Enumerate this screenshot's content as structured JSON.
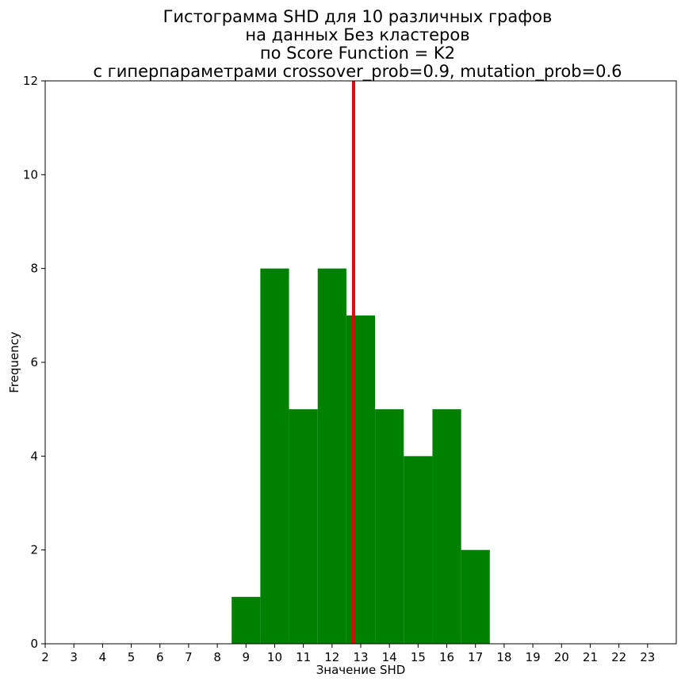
{
  "chart_data": {
    "type": "bar",
    "title_lines": [
      "Гистограмма SHD для 10 различных графов",
      "на данных Без кластеров",
      "по Score Function = K2",
      "с гиперпараметрами crossover_prob=0.9, mutation_prob=0.6"
    ],
    "xlabel": "Значение SHD",
    "ylabel": "Frequency",
    "xlim": [
      2,
      24
    ],
    "ylim": [
      0,
      12
    ],
    "x_ticks": [
      2,
      3,
      4,
      5,
      6,
      7,
      8,
      9,
      10,
      11,
      12,
      13,
      14,
      15,
      16,
      17,
      18,
      19,
      20,
      21,
      22,
      23
    ],
    "y_ticks": [
      0,
      2,
      4,
      6,
      8,
      10,
      12
    ],
    "categories": [
      9,
      10,
      11,
      12,
      13,
      14,
      15,
      16,
      17
    ],
    "values": [
      1,
      8,
      5,
      8,
      7,
      5,
      4,
      5,
      2
    ],
    "bar_color": "#008000",
    "mean_line": {
      "x": 12.75,
      "color": "#e8000b"
    }
  }
}
